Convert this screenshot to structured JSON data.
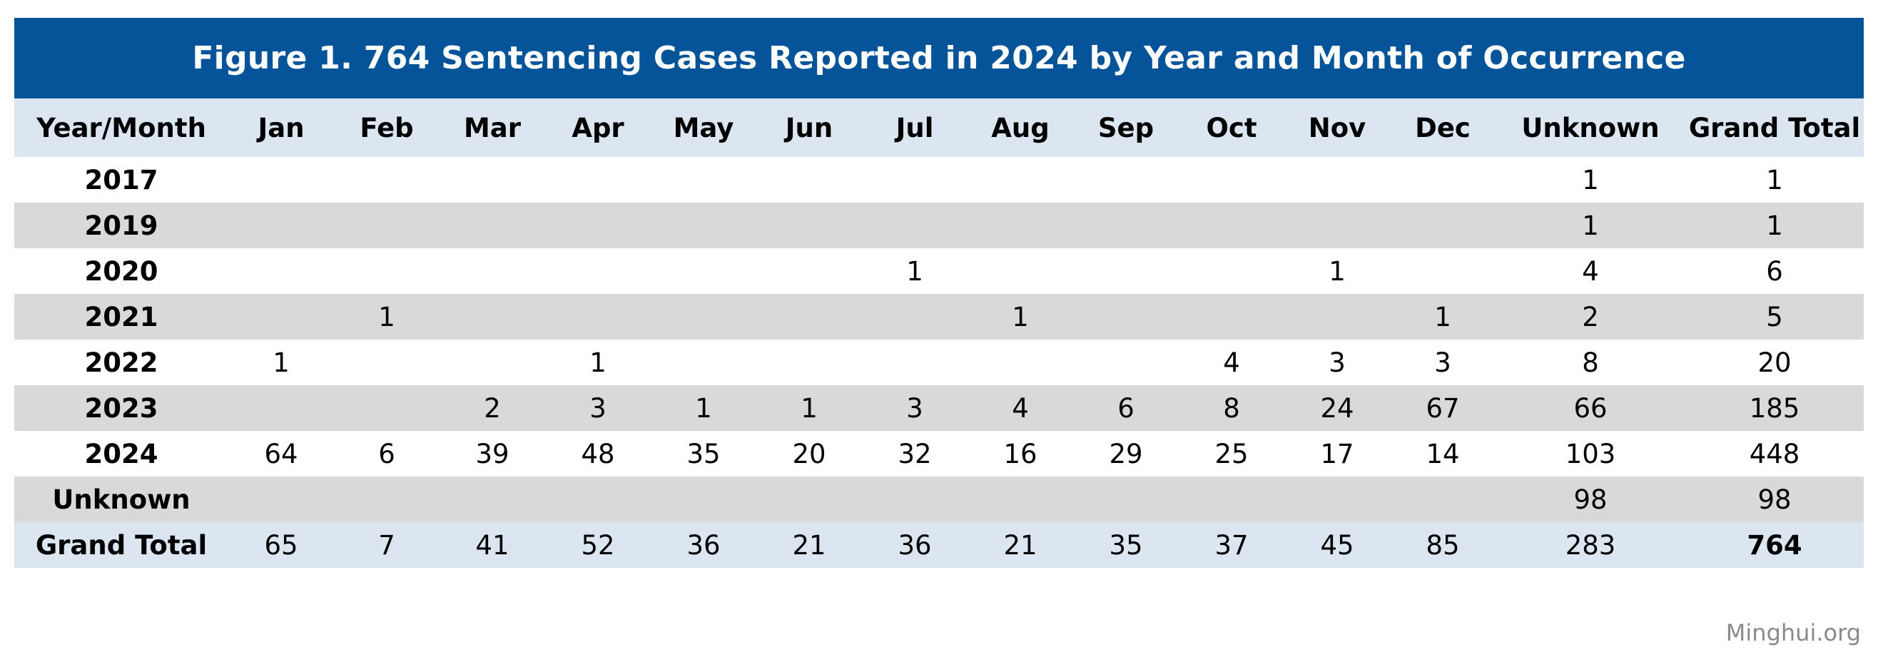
{
  "title": "Figure 1. 764 Sentencing Cases Reported in 2024 by Year and Month of Occurrence",
  "headers": [
    "Year/Month",
    "Jan",
    "Feb",
    "Mar",
    "Apr",
    "May",
    "Jun",
    "Jul",
    "Aug",
    "Sep",
    "Oct",
    "Nov",
    "Dec",
    "Unknown",
    "Grand Total"
  ],
  "rows": [
    {
      "label": "2017",
      "cells": [
        "",
        "",
        "",
        "",
        "",
        "",
        "",
        "",
        "",
        "",
        "",
        "",
        "1",
        "1"
      ]
    },
    {
      "label": "2019",
      "cells": [
        "",
        "",
        "",
        "",
        "",
        "",
        "",
        "",
        "",
        "",
        "",
        "",
        "1",
        "1"
      ]
    },
    {
      "label": "2020",
      "cells": [
        "",
        "",
        "",
        "",
        "",
        "",
        "1",
        "",
        "",
        "",
        "1",
        "",
        "4",
        "6"
      ]
    },
    {
      "label": "2021",
      "cells": [
        "",
        "1",
        "",
        "",
        "",
        "",
        "",
        "1",
        "",
        "",
        "",
        "1",
        "2",
        "5"
      ]
    },
    {
      "label": "2022",
      "cells": [
        "1",
        "",
        "",
        "1",
        "",
        "",
        "",
        "",
        "",
        "4",
        "3",
        "3",
        "8",
        "20"
      ]
    },
    {
      "label": "2023",
      "cells": [
        "",
        "",
        "2",
        "3",
        "1",
        "1",
        "3",
        "4",
        "6",
        "8",
        "24",
        "67",
        "66",
        "185"
      ]
    },
    {
      "label": "2024",
      "cells": [
        "64",
        "6",
        "39",
        "48",
        "35",
        "20",
        "32",
        "16",
        "29",
        "25",
        "17",
        "14",
        "103",
        "448"
      ]
    },
    {
      "label": "Unknown",
      "cells": [
        "",
        "",
        "",
        "",
        "",
        "",
        "",
        "",
        "",
        "",
        "",
        "",
        "98",
        "98"
      ]
    }
  ],
  "total_row": {
    "label": "Grand Total",
    "cells": [
      "65",
      "7",
      "41",
      "52",
      "36",
      "21",
      "36",
      "21",
      "35",
      "37",
      "45",
      "85",
      "283",
      "764"
    ]
  },
  "source": "Minghui.org",
  "colors": {
    "title_bg": "#05549a",
    "header_bg": "#dce6f1",
    "stripe_bg": "#d9d9d9",
    "total_bg": "#dce6f1"
  }
}
